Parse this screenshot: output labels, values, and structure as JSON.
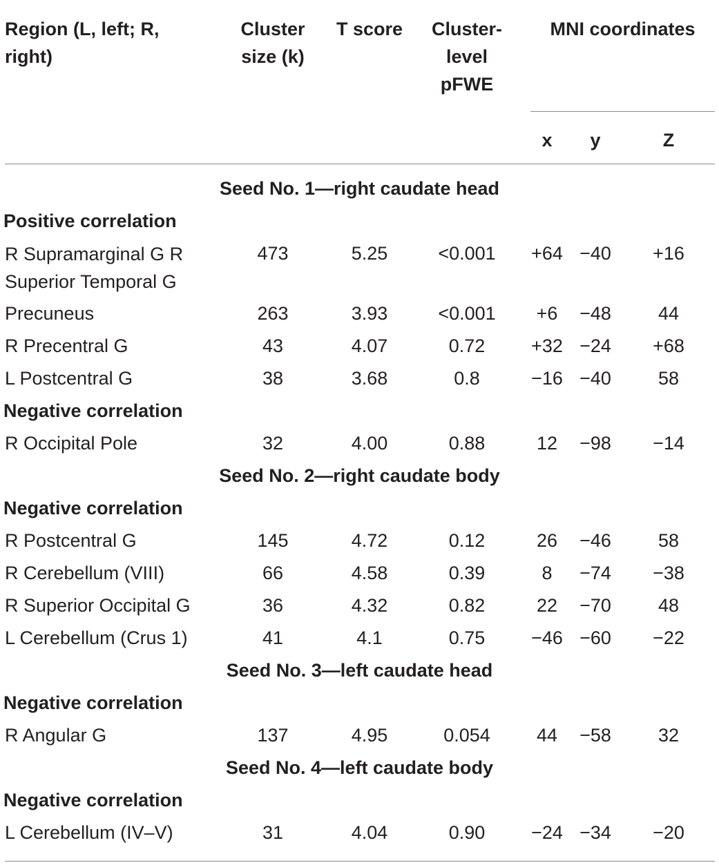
{
  "table": {
    "headers": {
      "region": "Region (L, left; R,\nright)",
      "cluster_size": "Cluster\nsize (k)",
      "t_score": "T score",
      "pfwe": "Cluster-\nlevel\npFWE",
      "mni": "MNI coordinates",
      "x": "x",
      "y": "y",
      "z": "Z"
    },
    "sections": [
      {
        "title": "Seed No. 1—right caudate head",
        "groups": [
          {
            "label": "Positive correlation",
            "rows": [
              {
                "region": "R Supramarginal G R\nSuperior Temporal G",
                "k": "473",
                "t": "5.25",
                "p": "<0.001",
                "x": "+64",
                "y": "−40",
                "z": "+16"
              },
              {
                "region": "Precuneus",
                "k": "263",
                "t": "3.93",
                "p": "<0.001",
                "x": "+6",
                "y": "−48",
                "z": "44"
              },
              {
                "region": "R Precentral G",
                "k": "43",
                "t": "4.07",
                "p": "0.72",
                "x": "+32",
                "y": "−24",
                "z": "+68"
              },
              {
                "region": "L Postcentral G",
                "k": "38",
                "t": "3.68",
                "p": "0.8",
                "x": "−16",
                "y": "−40",
                "z": "58"
              }
            ]
          },
          {
            "label": "Negative correlation",
            "rows": [
              {
                "region": "R Occipital Pole",
                "k": "32",
                "t": "4.00",
                "p": "0.88",
                "x": "12",
                "y": "−98",
                "z": "−14"
              }
            ]
          }
        ]
      },
      {
        "title": "Seed No. 2—right caudate body",
        "groups": [
          {
            "label": "Negative correlation",
            "rows": [
              {
                "region": "R Postcentral G",
                "k": "145",
                "t": "4.72",
                "p": "0.12",
                "x": "26",
                "y": "−46",
                "z": "58"
              },
              {
                "region": "R Cerebellum (VIII)",
                "k": "66",
                "t": "4.58",
                "p": "0.39",
                "x": "8",
                "y": "−74",
                "z": "−38"
              },
              {
                "region": "R Superior Occipital G",
                "k": "36",
                "t": "4.32",
                "p": "0.82",
                "x": "22",
                "y": "−70",
                "z": "48"
              },
              {
                "region": "L Cerebellum (Crus 1)",
                "k": "41",
                "t": "4.1",
                "p": "0.75",
                "x": "−46",
                "y": "−60",
                "z": "−22"
              }
            ]
          }
        ]
      },
      {
        "title": "Seed No. 3—left caudate head",
        "groups": [
          {
            "label": "Negative correlation",
            "rows": [
              {
                "region": "R Angular G",
                "k": "137",
                "t": "4.95",
                "p": "0.054",
                "x": "44",
                "y": "−58",
                "z": "32"
              }
            ]
          }
        ]
      },
      {
        "title": "Seed No. 4—left caudate body",
        "groups": [
          {
            "label": "Negative correlation",
            "rows": [
              {
                "region": "L Cerebellum (IV–V)",
                "k": "31",
                "t": "4.04",
                "p": "0.90",
                "x": "−24",
                "y": "−34",
                "z": "−20"
              }
            ]
          }
        ]
      }
    ]
  }
}
